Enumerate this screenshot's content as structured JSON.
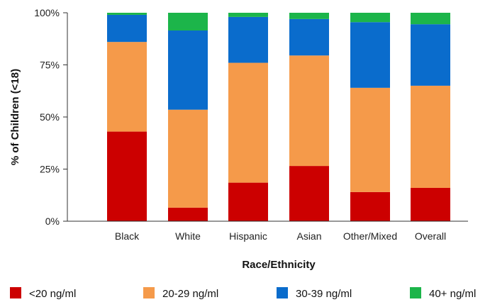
{
  "chart_data": {
    "type": "bar",
    "stacked": true,
    "categories": [
      "Black",
      "White",
      "Hispanic",
      "Asian",
      "Other/Mixed",
      "Overall"
    ],
    "series": [
      {
        "name": "<20 ng/ml",
        "color": "#cc0000",
        "values": [
          43,
          6.5,
          18.5,
          26.5,
          14,
          16
        ]
      },
      {
        "name": "20-29 ng/ml",
        "color": "#f59a4a",
        "values": [
          43,
          47,
          57.5,
          53,
          50,
          49
        ]
      },
      {
        "name": "30-39 ng/ml",
        "color": "#0a6ccc",
        "values": [
          13,
          38,
          22,
          17.5,
          31.5,
          29.5
        ]
      },
      {
        "name": "40+ ng/ml",
        "color": "#1cb54a",
        "values": [
          1,
          8.5,
          2,
          3,
          4.5,
          5.5
        ]
      }
    ],
    "yticks": [
      {
        "value": 0,
        "label": "0%"
      },
      {
        "value": 25,
        "label": "25%"
      },
      {
        "value": 50,
        "label": "50%"
      },
      {
        "value": 75,
        "label": "75%"
      },
      {
        "value": 100,
        "label": "100%"
      }
    ],
    "ylim": [
      0,
      100
    ],
    "xlabel": "Race/Ethnicity",
    "ylabel": "% of Children (<18)",
    "legend_position": "bottom",
    "grid": false
  }
}
